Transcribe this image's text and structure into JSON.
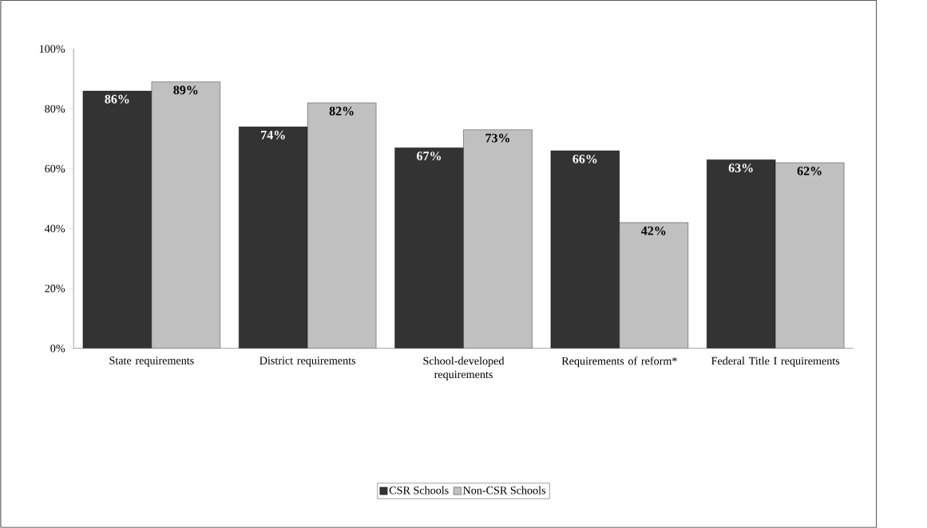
{
  "chart_data": {
    "type": "bar",
    "categories": [
      "State requirements",
      "District requirements",
      "School-developed requirements",
      "Requirements of reform*",
      "Federal Title I requirements"
    ],
    "series": [
      {
        "name": "CSR Schools",
        "color": "#333333",
        "values": [
          86,
          74,
          67,
          66,
          63
        ],
        "value_labels": [
          "86%",
          "74%",
          "67%",
          "66%",
          "63%"
        ]
      },
      {
        "name": "Non-CSR Schools",
        "color": "#c0c0c0",
        "values": [
          89,
          82,
          73,
          42,
          62
        ],
        "value_labels": [
          "89%",
          "82%",
          "73%",
          "42%",
          "62%"
        ]
      }
    ],
    "ylim": [
      0,
      100
    ],
    "yticks": [
      {
        "value": 0,
        "label": "0%"
      },
      {
        "value": 20,
        "label": "20%"
      },
      {
        "value": 40,
        "label": "40%"
      },
      {
        "value": 60,
        "label": "60%"
      },
      {
        "value": 80,
        "label": "80%"
      },
      {
        "value": 100,
        "label": "100%"
      }
    ],
    "grid": false,
    "legend": "bottom"
  }
}
